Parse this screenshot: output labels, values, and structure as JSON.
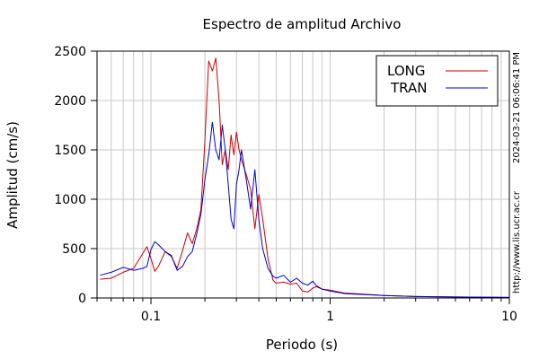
{
  "chart_data": {
    "type": "line",
    "title": "Espectro de amplitud Archivo",
    "xlabel": "Periodo (s)",
    "ylabel": "Amplitud (cm/s)",
    "x_scale": "log",
    "xlim": [
      0.05,
      10
    ],
    "ylim": [
      0,
      2500
    ],
    "x_ticks": [
      {
        "value": 0.1,
        "label": "0.1"
      },
      {
        "value": 1,
        "label": "1"
      },
      {
        "value": 10,
        "label": "10"
      }
    ],
    "y_ticks": [
      {
        "value": 0,
        "label": "0"
      },
      {
        "value": 500,
        "label": "500"
      },
      {
        "value": 1000,
        "label": "1000"
      },
      {
        "value": 1500,
        "label": "1500"
      },
      {
        "value": 2000,
        "label": "2000"
      },
      {
        "value": 2500,
        "label": "2500"
      }
    ],
    "grid": true,
    "legend_position": "top-right",
    "series": [
      {
        "name": "LONG",
        "color": "#cc0000",
        "x": [
          0.052,
          0.06,
          0.07,
          0.08,
          0.09,
          0.095,
          0.1,
          0.105,
          0.11,
          0.12,
          0.13,
          0.14,
          0.15,
          0.16,
          0.17,
          0.18,
          0.19,
          0.2,
          0.21,
          0.22,
          0.23,
          0.24,
          0.25,
          0.26,
          0.27,
          0.28,
          0.29,
          0.3,
          0.31,
          0.32,
          0.34,
          0.36,
          0.38,
          0.4,
          0.42,
          0.45,
          0.48,
          0.5,
          0.55,
          0.6,
          0.65,
          0.7,
          0.75,
          0.8,
          0.85,
          0.9,
          1.0,
          1.2,
          1.5,
          2.0,
          3.0,
          5.0,
          7.0,
          10.0
        ],
        "y": [
          190,
          200,
          260,
          300,
          450,
          520,
          400,
          270,
          320,
          470,
          420,
          300,
          480,
          660,
          550,
          700,
          900,
          1600,
          2400,
          2300,
          2430,
          2000,
          1350,
          1500,
          1300,
          1650,
          1450,
          1680,
          1500,
          1400,
          1250,
          1100,
          700,
          1050,
          800,
          400,
          180,
          150,
          160,
          140,
          150,
          70,
          60,
          100,
          120,
          90,
          80,
          50,
          40,
          25,
          15,
          10,
          8,
          5
        ]
      },
      {
        "name": "TRAN",
        "color": "#0000cc",
        "x": [
          0.052,
          0.06,
          0.07,
          0.08,
          0.09,
          0.095,
          0.1,
          0.105,
          0.11,
          0.12,
          0.13,
          0.14,
          0.15,
          0.16,
          0.17,
          0.18,
          0.19,
          0.2,
          0.21,
          0.22,
          0.23,
          0.24,
          0.25,
          0.26,
          0.27,
          0.28,
          0.29,
          0.3,
          0.31,
          0.32,
          0.34,
          0.36,
          0.38,
          0.4,
          0.42,
          0.45,
          0.48,
          0.5,
          0.55,
          0.6,
          0.65,
          0.7,
          0.75,
          0.8,
          0.85,
          0.9,
          1.0,
          1.2,
          1.5,
          2.0,
          3.0,
          5.0,
          7.0,
          10.0
        ],
        "y": [
          230,
          260,
          310,
          280,
          300,
          320,
          490,
          570,
          540,
          470,
          430,
          280,
          320,
          420,
          470,
          650,
          850,
          1200,
          1450,
          1780,
          1500,
          1400,
          1750,
          1500,
          1150,
          800,
          700,
          1150,
          1300,
          1500,
          1200,
          900,
          1300,
          800,
          500,
          300,
          220,
          200,
          230,
          160,
          200,
          150,
          130,
          170,
          110,
          90,
          70,
          45,
          35,
          25,
          15,
          10,
          8,
          5
        ]
      }
    ],
    "side_texts": [
      "2024-03-21 06:06:41 PM",
      "http://www.lis.ucr.ac.cr"
    ]
  }
}
